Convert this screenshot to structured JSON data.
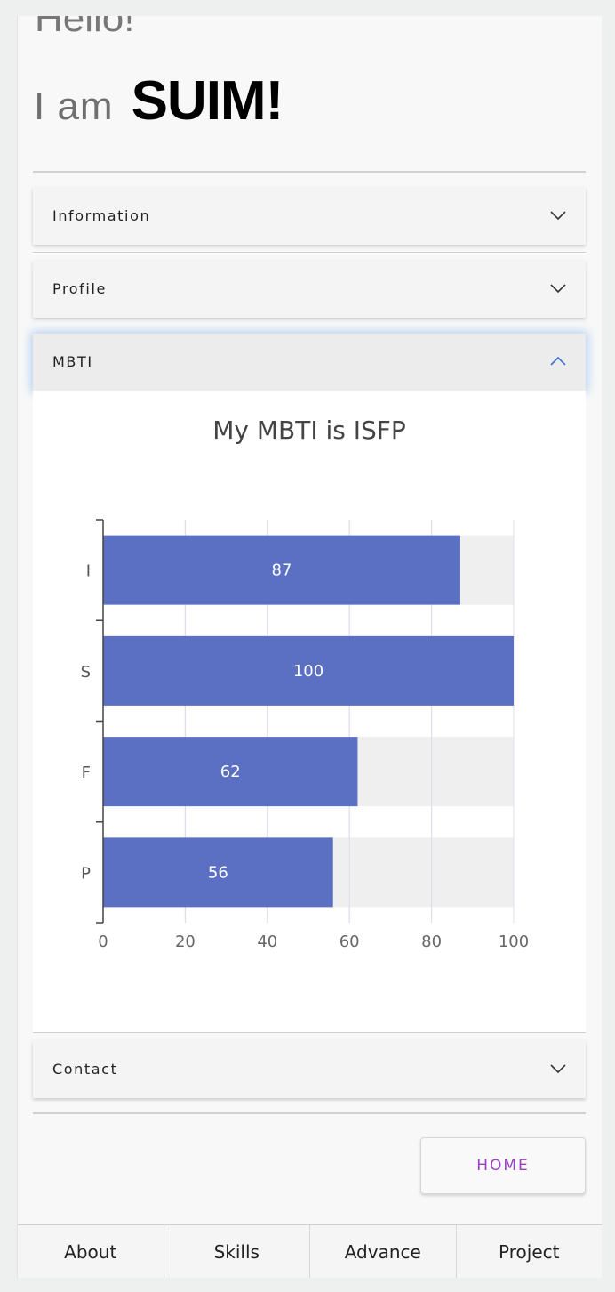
{
  "hero": {
    "hello": "Hello!",
    "iam_prefix": "I am",
    "name": "SUIM!"
  },
  "accordion": [
    {
      "label": "Information",
      "open": false
    },
    {
      "label": "Profile",
      "open": false
    },
    {
      "label": "MBTI",
      "open": true
    },
    {
      "label": "Contact",
      "open": false
    }
  ],
  "home_button": "HOME",
  "tabs": [
    "About",
    "Skills",
    "Advance",
    "Project"
  ],
  "colors": {
    "bar": "#5b70c2",
    "track": "#efefef",
    "accent": "#9a3fc4"
  },
  "chart_data": {
    "type": "bar",
    "orientation": "horizontal",
    "title": "My MBTI is ISFP",
    "categories": [
      "I",
      "S",
      "F",
      "P"
    ],
    "values": [
      87,
      100,
      62,
      56
    ],
    "xlim": [
      0,
      100
    ],
    "xticks": [
      "0",
      "20",
      "40",
      "60",
      "80",
      "100"
    ],
    "grid": true,
    "max_track": 100
  }
}
